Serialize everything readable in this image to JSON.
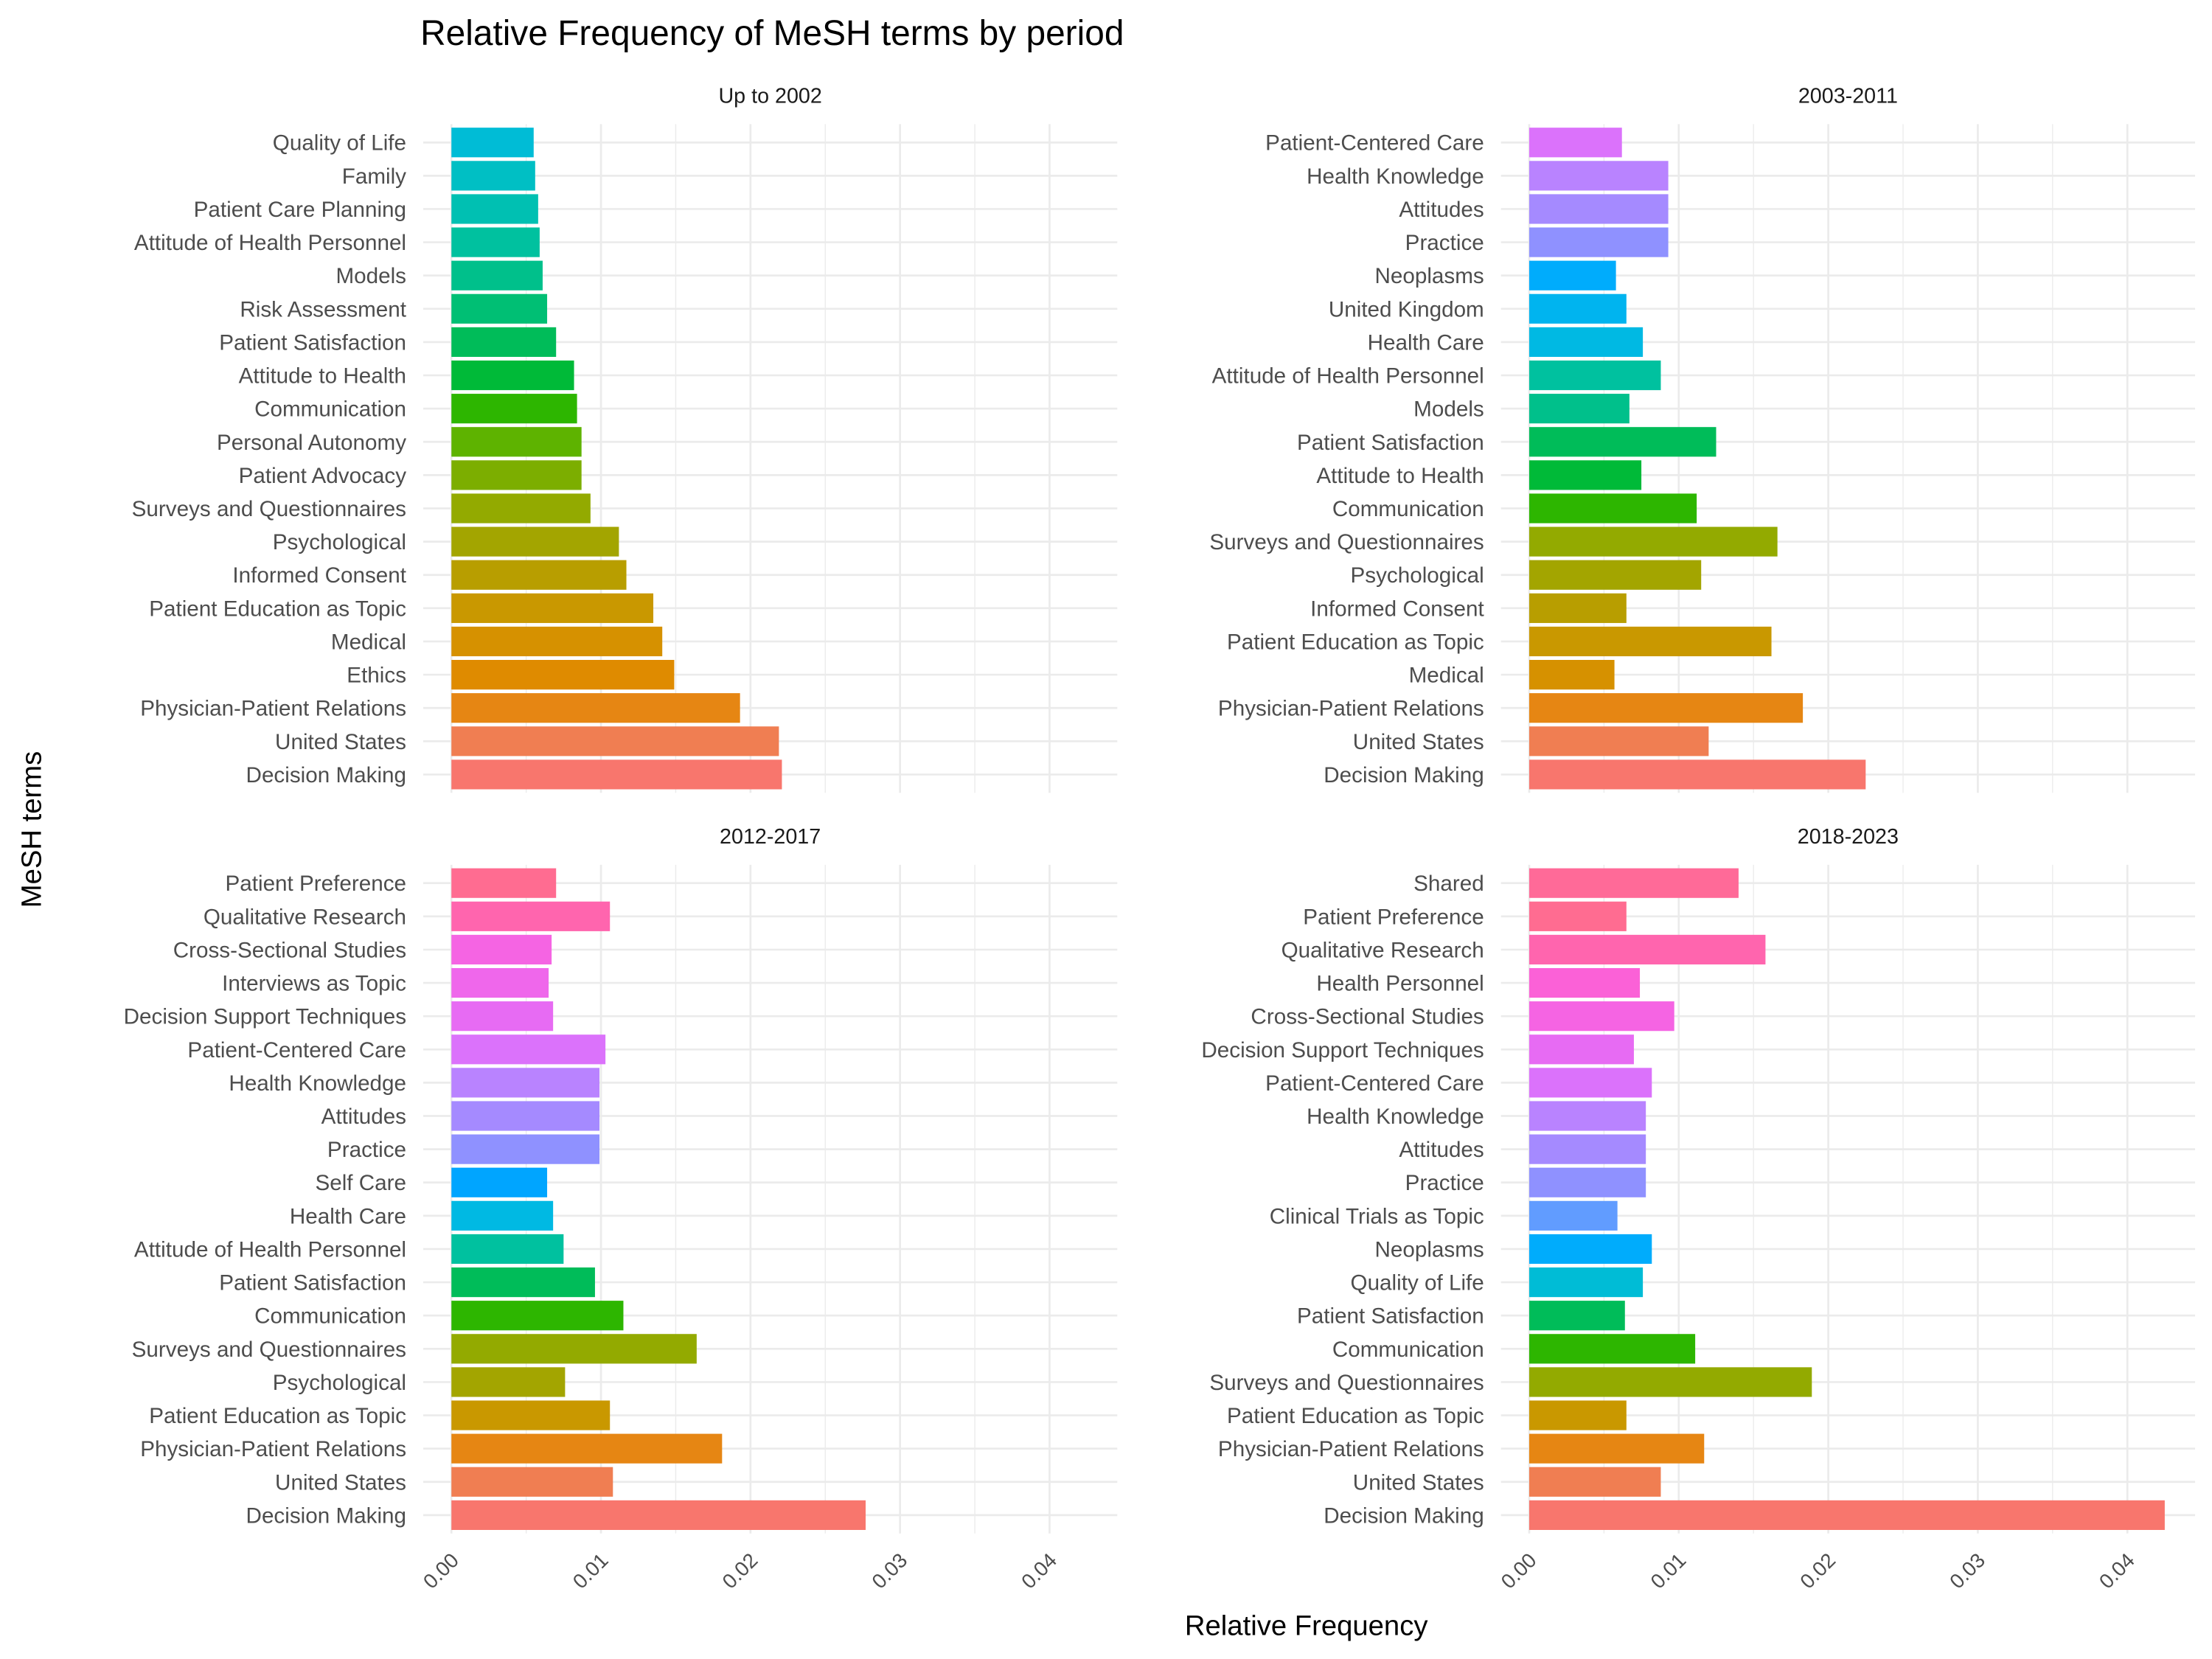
{
  "chart_data": {
    "type": "bar",
    "orientation": "horizontal",
    "title": "Relative Frequency of MeSH terms by period",
    "xlabel": "Relative Frequency",
    "ylabel": "MeSH terms",
    "xlim": [
      0,
      0.044
    ],
    "x_ticks": [
      "0.00",
      "0.01",
      "0.02",
      "0.03",
      "0.04"
    ],
    "grid": true,
    "colors": {
      "Decision Making": "#F8766D",
      "United States": "#F07E52",
      "Physician-Patient Relations": "#E68613",
      "Ethics": "#DF8B00",
      "Medical": "#D69100",
      "Patient Education as Topic": "#C99800",
      "Informed Consent": "#B89E00",
      "Psychological": "#A3A500",
      "Surveys and Questionnaires": "#93AA00",
      "Patient Advocacy": "#7CAE00",
      "Personal Autonomy": "#5EB300",
      "Communication": "#2DB600",
      "Attitude to Health": "#00BA38",
      "Patient Satisfaction": "#00BC59",
      "Risk Assessment": "#00BF74",
      "Models": "#00C08B",
      "Attitude of Health Personnel": "#00C19F",
      "Patient Care Planning": "#00C0B2",
      "Family": "#00BFC4",
      "Quality of Life": "#00BCD6",
      "Health Care": "#00B9E3",
      "United Kingdom": "#00B4EF",
      "Neoplasms": "#00ACFC",
      "Self Care": "#00A5FF",
      "Clinical Trials as Topic": "#619CFF",
      "Practice": "#8F91FF",
      "Attitudes": "#A58AFF",
      "Health Knowledge": "#B983FF",
      "Patient-Centered Care": "#DB72FB",
      "Decision Support Techniques": "#E76BF3",
      "Interviews as Topic": "#EF67EB",
      "Cross-Sectional Studies": "#F564E3",
      "Health Personnel": "#FB61D7",
      "Qualitative Research": "#FF65AE",
      "Patient Preference": "#FF6C91",
      "Shared": "#FF6A98"
    },
    "panels": [
      {
        "name": "Up to 2002",
        "categories": [
          "Quality of Life",
          "Family",
          "Patient Care Planning",
          "Attitude of Health Personnel",
          "Models",
          "Risk Assessment",
          "Patient Satisfaction",
          "Attitude to Health",
          "Communication",
          "Personal Autonomy",
          "Patient Advocacy",
          "Surveys and Questionnaires",
          "Psychological",
          "Informed Consent",
          "Patient Education as Topic",
          "Medical",
          "Ethics",
          "Physician-Patient Relations",
          "United States",
          "Decision Making"
        ],
        "values": [
          0.0055,
          0.0056,
          0.0058,
          0.0059,
          0.0061,
          0.0064,
          0.007,
          0.0082,
          0.0084,
          0.0087,
          0.0087,
          0.0093,
          0.0112,
          0.0117,
          0.0135,
          0.0141,
          0.0149,
          0.0193,
          0.0219,
          0.0221
        ]
      },
      {
        "name": "2003-2011",
        "categories": [
          "Patient-Centered Care",
          "Health Knowledge",
          "Attitudes",
          "Practice",
          "Neoplasms",
          "United Kingdom",
          "Health Care",
          "Attitude of Health Personnel",
          "Models",
          "Patient Satisfaction",
          "Attitude to Health",
          "Communication",
          "Surveys and Questionnaires",
          "Psychological",
          "Informed Consent",
          "Patient Education as Topic",
          "Medical",
          "Physician-Patient Relations",
          "United States",
          "Decision Making"
        ],
        "values": [
          0.0062,
          0.0093,
          0.0093,
          0.0093,
          0.0058,
          0.0065,
          0.0076,
          0.0088,
          0.0067,
          0.0125,
          0.0075,
          0.0112,
          0.0166,
          0.0115,
          0.0065,
          0.0162,
          0.0057,
          0.0183,
          0.012,
          0.0225
        ]
      },
      {
        "name": "2012-2017",
        "categories": [
          "Patient Preference",
          "Qualitative Research",
          "Cross-Sectional Studies",
          "Interviews as Topic",
          "Decision Support Techniques",
          "Patient-Centered Care",
          "Health Knowledge",
          "Attitudes",
          "Practice",
          "Self Care",
          "Health Care",
          "Attitude of Health Personnel",
          "Patient Satisfaction",
          "Communication",
          "Surveys and Questionnaires",
          "Psychological",
          "Patient Education as Topic",
          "Physician-Patient Relations",
          "United States",
          "Decision Making"
        ],
        "values": [
          0.007,
          0.0106,
          0.0067,
          0.0065,
          0.0068,
          0.0103,
          0.0099,
          0.0099,
          0.0099,
          0.0064,
          0.0068,
          0.0075,
          0.0096,
          0.0115,
          0.0164,
          0.0076,
          0.0106,
          0.0181,
          0.0108,
          0.0277
        ]
      },
      {
        "name": "2018-2023",
        "categories": [
          "Shared",
          "Patient Preference",
          "Qualitative Research",
          "Health Personnel",
          "Cross-Sectional Studies",
          "Decision Support Techniques",
          "Patient-Centered Care",
          "Health Knowledge",
          "Attitudes",
          "Practice",
          "Clinical Trials as Topic",
          "Neoplasms",
          "Quality of Life",
          "Patient Satisfaction",
          "Communication",
          "Surveys and Questionnaires",
          "Patient Education as Topic",
          "Physician-Patient Relations",
          "United States",
          "Decision Making"
        ],
        "values": [
          0.014,
          0.0065,
          0.0158,
          0.0074,
          0.0097,
          0.007,
          0.0082,
          0.0078,
          0.0078,
          0.0078,
          0.0059,
          0.0082,
          0.0076,
          0.0064,
          0.0111,
          0.0189,
          0.0065,
          0.0117,
          0.0088,
          0.0425
        ]
      }
    ]
  }
}
